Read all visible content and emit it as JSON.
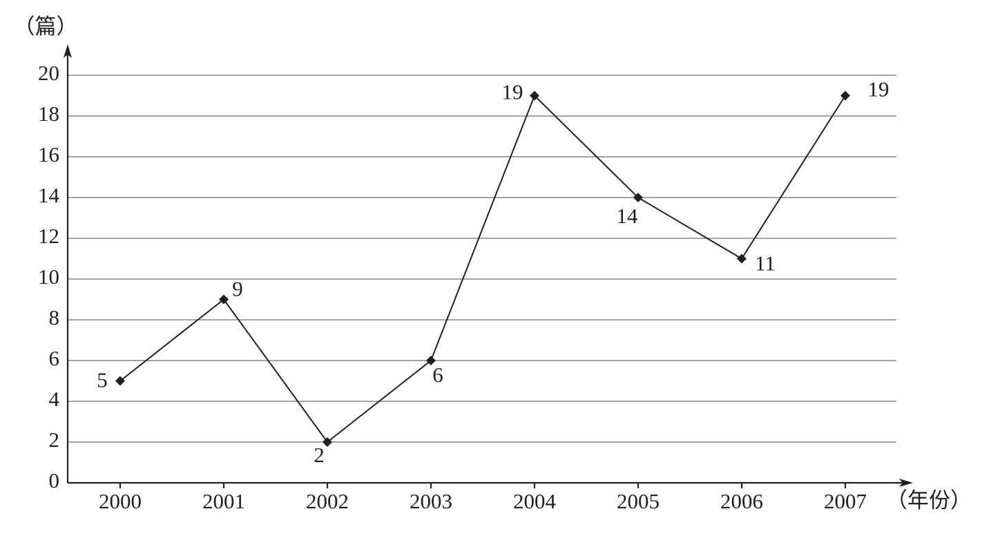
{
  "chart_data": {
    "type": "line",
    "y_label": "（篇）",
    "x_label": "（年份）",
    "categories": [
      "2000",
      "2001",
      "2002",
      "2003",
      "2004",
      "2005",
      "2006",
      "2007"
    ],
    "values": [
      5,
      9,
      2,
      6,
      19,
      14,
      11,
      19
    ],
    "color": "#231f20",
    "ylim": [
      0,
      20
    ],
    "yticks": [
      0,
      2,
      4,
      6,
      8,
      10,
      12,
      14,
      16,
      18,
      20
    ],
    "grid": true
  }
}
